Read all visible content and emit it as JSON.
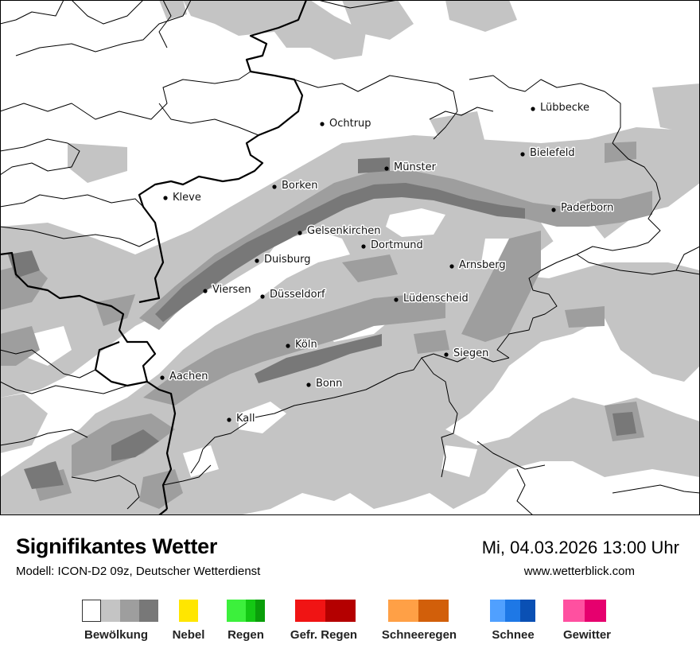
{
  "title": "Signifikantes Wetter",
  "subtitle": "Modell: ICON-D2 09z, Deutscher Wetterdienst",
  "datetime": "Mi, 04.03.2026 13:00 Uhr",
  "website": "www.wetterblick.com",
  "cities": [
    {
      "name": "Lübbecke"
    },
    {
      "name": "Ochtrup"
    },
    {
      "name": "Bielefeld"
    },
    {
      "name": "Münster"
    },
    {
      "name": "Borken"
    },
    {
      "name": "Kleve"
    },
    {
      "name": "Paderborn"
    },
    {
      "name": "Gelsenkirchen"
    },
    {
      "name": "Dortmund"
    },
    {
      "name": "Duisburg"
    },
    {
      "name": "Arnsberg"
    },
    {
      "name": "Viersen"
    },
    {
      "name": "Düsseldorf"
    },
    {
      "name": "Lüdenscheid"
    },
    {
      "name": "Köln"
    },
    {
      "name": "Siegen"
    },
    {
      "name": "Aachen"
    },
    {
      "name": "Bonn"
    },
    {
      "name": "Kall"
    }
  ],
  "legend": [
    {
      "label": "Bewölkung",
      "colors": [
        "#ffffff",
        "#c4c4c4",
        "#9e9e9e",
        "#787878"
      ]
    },
    {
      "label": "Nebel",
      "colors": [
        "#ffe600"
      ]
    },
    {
      "label": "Regen",
      "colors": [
        "#3cf03c",
        "#14c814",
        "#0a9e0a"
      ]
    },
    {
      "label": "Gefr. Regen",
      "colors": [
        "#f01414",
        "#b40000"
      ]
    },
    {
      "label": "Schneeregen",
      "colors": [
        "#ffa046",
        "#d25f0a"
      ]
    },
    {
      "label": "Schnee",
      "colors": [
        "#50a0ff",
        "#1e78e6",
        "#0a50b4"
      ]
    },
    {
      "label": "Gewitter",
      "colors": [
        "#ff50a0",
        "#e6006e"
      ]
    }
  ]
}
